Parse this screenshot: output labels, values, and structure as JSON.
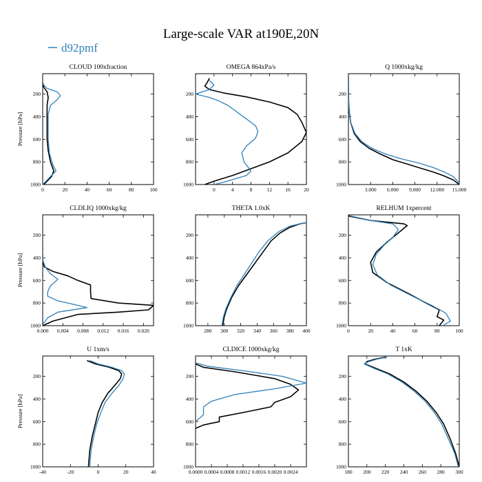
{
  "title": "Large-scale VAR at190E,20N",
  "legend": [
    {
      "label": "d92pmf",
      "color": "#2f7fb7"
    }
  ],
  "colors": {
    "model": "#2f7fb7",
    "reference": "#000000"
  },
  "chart_data": [
    {
      "type": "line",
      "title": "CLOUD 100xfraction",
      "ylabel": "Pressure [hPa]",
      "xlim": [
        0,
        100
      ],
      "ylim": [
        1000,
        20
      ],
      "y_inverted": true,
      "xticks": [
        0,
        20,
        40,
        60,
        80,
        100
      ],
      "xtick_labels": [
        "0",
        "20",
        "40",
        "60",
        "80",
        "100"
      ],
      "yticks": [
        200,
        400,
        600,
        800,
        1000
      ],
      "series": [
        {
          "color": "#000000",
          "x": [
            0,
            1,
            4,
            5,
            4,
            4,
            4,
            4,
            5,
            7,
            10,
            8,
            3,
            1
          ],
          "y": [
            100,
            140,
            180,
            230,
            300,
            400,
            500,
            600,
            700,
            800,
            880,
            930,
            980,
            1000
          ]
        },
        {
          "color": "#2f7fb7",
          "x": [
            0,
            4,
            13,
            16,
            12,
            7,
            5,
            5,
            5,
            6,
            9,
            12,
            6,
            2,
            0
          ],
          "y": [
            110,
            150,
            180,
            215,
            260,
            300,
            380,
            480,
            600,
            720,
            820,
            880,
            940,
            980,
            1000
          ]
        }
      ]
    },
    {
      "type": "line",
      "title": "OMEGA 864xPa/s",
      "ylabel": "",
      "xlim": [
        -4,
        20
      ],
      "ylim": [
        1000,
        20
      ],
      "y_inverted": true,
      "xticks": [
        0,
        4,
        8,
        12,
        16,
        20
      ],
      "xtick_labels": [
        "0",
        "4",
        "8",
        "12",
        "16",
        "20"
      ],
      "yticks": [
        200,
        400,
        600,
        800,
        1000
      ],
      "series": [
        {
          "color": "#000000",
          "x": [
            -1,
            -1.5,
            -2,
            -1,
            2,
            7,
            12,
            16,
            18,
            19,
            20,
            19,
            16,
            12,
            8,
            4,
            0,
            -2
          ],
          "y": [
            60,
            100,
            130,
            160,
            190,
            225,
            270,
            320,
            380,
            450,
            540,
            620,
            720,
            800,
            860,
            920,
            970,
            1000
          ]
        },
        {
          "color": "#2f7fb7",
          "x": [
            -1,
            0,
            -1,
            -4,
            -1,
            1,
            3,
            5,
            7,
            9,
            9.5,
            9,
            7,
            6,
            6.5,
            8,
            7,
            2,
            0
          ],
          "y": [
            80,
            120,
            160,
            200,
            230,
            260,
            300,
            360,
            420,
            480,
            530,
            590,
            660,
            720,
            800,
            880,
            920,
            980,
            1000
          ]
        }
      ]
    },
    {
      "type": "line",
      "title": "Q 1000xkg/kg",
      "ylabel": "",
      "xlim": [
        0,
        15
      ],
      "ylim": [
        1000,
        20
      ],
      "y_inverted": true,
      "xticks": [
        3,
        6,
        9,
        12,
        15
      ],
      "xtick_labels": [
        "3.000",
        "6.000",
        "9.000",
        "12.000",
        "15.000"
      ],
      "yticks": [
        200,
        400,
        600,
        800,
        1000
      ],
      "series": [
        {
          "color": "#000000",
          "x": [
            0,
            0.005,
            0.02,
            0.1,
            0.3,
            0.8,
            1.6,
            2.8,
            4.3,
            6,
            8,
            10,
            11.5,
            12.8,
            14.2,
            15
          ],
          "y": [
            50,
            150,
            250,
            350,
            450,
            550,
            620,
            680,
            730,
            780,
            820,
            860,
            890,
            920,
            960,
            1000
          ]
        },
        {
          "color": "#2f7fb7",
          "x": [
            0,
            0.005,
            0.02,
            0.1,
            0.3,
            0.9,
            1.8,
            3.2,
            5,
            7,
            9.5,
            11.5,
            13,
            14.2,
            15.2
          ],
          "y": [
            50,
            150,
            250,
            350,
            450,
            550,
            620,
            680,
            730,
            770,
            810,
            850,
            890,
            930,
            1000
          ]
        }
      ]
    },
    {
      "type": "line",
      "title": "CLDLIQ 1000xkg/kg",
      "ylabel": "Pressure [hPa]",
      "xlim": [
        0,
        0.022
      ],
      "ylim": [
        1000,
        20
      ],
      "y_inverted": true,
      "xticks": [
        0,
        0.004,
        0.008,
        0.012,
        0.016,
        0.02
      ],
      "xtick_labels": [
        "0.000",
        "0.004",
        "0.008",
        "0.012",
        "0.016",
        "0.020"
      ],
      "yticks": [
        200,
        400,
        600,
        800,
        1000
      ],
      "series": [
        {
          "color": "#000000",
          "x": [
            0,
            0,
            0.0003,
            0.002,
            0.005,
            0.007,
            0.0095,
            0.0095,
            0.0096,
            0.015,
            0.022,
            0.021,
            0.015,
            0.007,
            0.002,
            0
          ],
          "y": [
            360,
            420,
            480,
            520,
            560,
            600,
            640,
            700,
            760,
            800,
            820,
            860,
            880,
            900,
            960,
            1000
          ]
        },
        {
          "color": "#2f7fb7",
          "x": [
            0,
            0,
            0.0005,
            0.0015,
            0.003,
            0.0015,
            0.001,
            0.001,
            0.003,
            0.006,
            0.0088,
            0.003,
            0.001,
            0
          ],
          "y": [
            350,
            420,
            480,
            540,
            590,
            650,
            700,
            740,
            780,
            810,
            840,
            880,
            930,
            990
          ]
        }
      ]
    },
    {
      "type": "line",
      "title": "THETA 1.0xK",
      "ylabel": "",
      "xlim": [
        265,
        400
      ],
      "ylim": [
        1000,
        20
      ],
      "y_inverted": true,
      "xticks": [
        280,
        300,
        320,
        340,
        360,
        380,
        400
      ],
      "xtick_labels": [
        "280",
        "300",
        "320",
        "340",
        "360",
        "380",
        "400"
      ],
      "yticks": [
        200,
        400,
        600,
        800,
        1000
      ],
      "series": [
        {
          "color": "#000000",
          "x": [
            298,
            300,
            303,
            309,
            317,
            327,
            337,
            347,
            357,
            368,
            380,
            392,
            400
          ],
          "y": [
            1000,
            920,
            850,
            750,
            650,
            550,
            450,
            350,
            250,
            180,
            130,
            100,
            90
          ]
        },
        {
          "color": "#2f7fb7",
          "x": [
            297,
            299,
            302,
            308,
            315,
            324,
            333,
            342,
            353,
            366,
            380,
            395,
            400
          ],
          "y": [
            1000,
            920,
            850,
            750,
            650,
            550,
            450,
            350,
            250,
            170,
            120,
            95,
            90
          ]
        }
      ]
    },
    {
      "type": "line",
      "title": "RELHUM 1xpercent",
      "ylabel": "",
      "xlim": [
        0,
        100
      ],
      "ylim": [
        1000,
        20
      ],
      "y_inverted": true,
      "xticks": [
        0,
        20,
        40,
        60,
        80,
        100
      ],
      "xtick_labels": [
        "0",
        "20",
        "40",
        "60",
        "80",
        "100"
      ],
      "yticks": [
        200,
        400,
        600,
        800,
        1000
      ],
      "series": [
        {
          "color": "#000000",
          "x": [
            0,
            20,
            50,
            53,
            45,
            35,
            25,
            20,
            22,
            35,
            55,
            70,
            82,
            80,
            86,
            82
          ],
          "y": [
            30,
            70,
            100,
            115,
            180,
            260,
            350,
            440,
            530,
            620,
            720,
            800,
            860,
            920,
            950,
            1000
          ]
        },
        {
          "color": "#2f7fb7",
          "x": [
            2,
            20,
            40,
            45,
            40,
            32,
            25,
            22,
            26,
            38,
            58,
            75,
            88,
            92,
            85
          ],
          "y": [
            30,
            70,
            100,
            150,
            220,
            290,
            370,
            460,
            550,
            640,
            740,
            820,
            890,
            960,
            1000
          ]
        }
      ]
    },
    {
      "type": "line",
      "title": "U 1xm/s",
      "ylabel": "Pressure [hPa]",
      "xlim": [
        -40,
        40
      ],
      "ylim": [
        1000,
        20
      ],
      "y_inverted": true,
      "xticks": [
        -40,
        -20,
        0,
        20,
        40
      ],
      "xtick_labels": [
        "-40",
        "-20",
        "0",
        "20",
        "40"
      ],
      "yticks": [
        200,
        400,
        600,
        800,
        1000
      ],
      "series": [
        {
          "color": "#000000",
          "x": [
            -8,
            -2,
            8,
            15,
            17,
            16,
            12,
            7,
            3,
            0,
            -2,
            -4,
            -6,
            -7
          ],
          "y": [
            60,
            90,
            120,
            150,
            180,
            220,
            280,
            350,
            430,
            520,
            620,
            720,
            850,
            1000
          ]
        },
        {
          "color": "#2f7fb7",
          "x": [
            -6,
            0,
            10,
            17,
            19,
            18,
            15,
            10,
            5,
            2,
            -1,
            -3,
            -5,
            -6
          ],
          "y": [
            60,
            90,
            120,
            150,
            180,
            220,
            280,
            350,
            430,
            520,
            620,
            720,
            850,
            1000
          ]
        }
      ]
    },
    {
      "type": "line",
      "title": "CLDICE 1000xkg/kg",
      "ylabel": "",
      "xlim": [
        0,
        0.0028
      ],
      "ylim": [
        1000,
        20
      ],
      "y_inverted": true,
      "xticks": [
        0,
        0.0004,
        0.0008,
        0.0012,
        0.0016,
        0.002,
        0.0024
      ],
      "xtick_labels": [
        "0.0000",
        "0.0004",
        "0.0008",
        "0.0012",
        "0.0016",
        "0.0020",
        "0.0024"
      ],
      "yticks": [
        200,
        400,
        600,
        800,
        1000
      ],
      "series": [
        {
          "color": "#000000",
          "x": [
            0,
            0.0002,
            0.001,
            0.002,
            0.0024,
            0.0026,
            0.0024,
            0.002,
            0.0019,
            0.0012,
            0.0006,
            0.0006,
            0.0002,
            0
          ],
          "y": [
            90,
            120,
            160,
            220,
            270,
            320,
            380,
            430,
            470,
            520,
            560,
            600,
            630,
            660
          ]
        },
        {
          "color": "#2f7fb7",
          "x": [
            0,
            0.0003,
            0.0012,
            0.0022,
            0.0028,
            0.002,
            0.001,
            0.0004,
            0.0002,
            0.0002,
            0
          ],
          "y": [
            80,
            110,
            150,
            200,
            260,
            310,
            360,
            420,
            470,
            540,
            600
          ]
        }
      ]
    },
    {
      "type": "line",
      "title": "T 1xK",
      "ylabel": "",
      "xlim": [
        180,
        300
      ],
      "ylim": [
        1000,
        20
      ],
      "y_inverted": true,
      "xticks": [
        180,
        200,
        220,
        240,
        260,
        280,
        300
      ],
      "xtick_labels": [
        "180",
        "200",
        "220",
        "240",
        "260",
        "280",
        "300"
      ],
      "yticks": [
        200,
        400,
        600,
        800,
        1000
      ],
      "series": [
        {
          "color": "#000000",
          "x": [
            220,
            208,
            200,
            198,
            210,
            225,
            240,
            253,
            265,
            275,
            283,
            290,
            296,
            300
          ],
          "y": [
            30,
            50,
            70,
            90,
            130,
            180,
            250,
            330,
            420,
            520,
            620,
            750,
            880,
            1000
          ]
        },
        {
          "color": "#2f7fb7",
          "x": [
            222,
            210,
            202,
            197,
            208,
            223,
            238,
            251,
            263,
            273,
            281,
            288,
            295,
            299
          ],
          "y": [
            30,
            50,
            70,
            90,
            130,
            180,
            250,
            330,
            420,
            520,
            620,
            750,
            880,
            1000
          ]
        }
      ]
    }
  ]
}
